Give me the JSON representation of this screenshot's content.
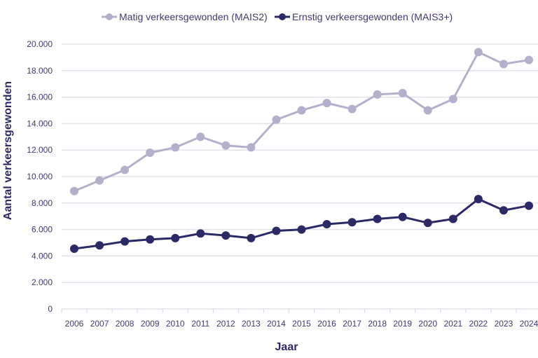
{
  "chart_data": {
    "type": "line",
    "title": "",
    "xlabel": "Jaar",
    "ylabel": "Aantal verkeersgewonden",
    "x": [
      "2006",
      "2007",
      "2008",
      "2009",
      "2010",
      "2011",
      "2012",
      "2013",
      "2014",
      "2015",
      "2016",
      "2017",
      "2018",
      "2019",
      "2020",
      "2021",
      "2022",
      "2023",
      "2024"
    ],
    "ylim": [
      0,
      20000
    ],
    "yticks": [
      0,
      2000,
      4000,
      6000,
      8000,
      10000,
      12000,
      14000,
      16000,
      18000,
      20000
    ],
    "ytick_labels": [
      "0",
      "2.000",
      "4.000",
      "6.000",
      "8.000",
      "10.000",
      "12.000",
      "14.000",
      "16.000",
      "18.000",
      "20.000"
    ],
    "grid": true,
    "legend_position": "top",
    "series": [
      {
        "name": "Matig verkeersgewonden (MAIS2)",
        "color": "#b3b0cc",
        "values": [
          8900,
          9700,
          10500,
          11800,
          12200,
          13000,
          12350,
          12200,
          14300,
          15000,
          15550,
          15100,
          16200,
          16300,
          15000,
          15850,
          19400,
          18500,
          18800
        ]
      },
      {
        "name": "Ernstig verkeersgewonden (MAIS3+)",
        "color": "#2b2a66",
        "values": [
          4550,
          4800,
          5100,
          5250,
          5350,
          5700,
          5550,
          5350,
          5900,
          6000,
          6400,
          6550,
          6800,
          6950,
          6500,
          6800,
          8300,
          7450,
          7800
        ]
      }
    ]
  }
}
